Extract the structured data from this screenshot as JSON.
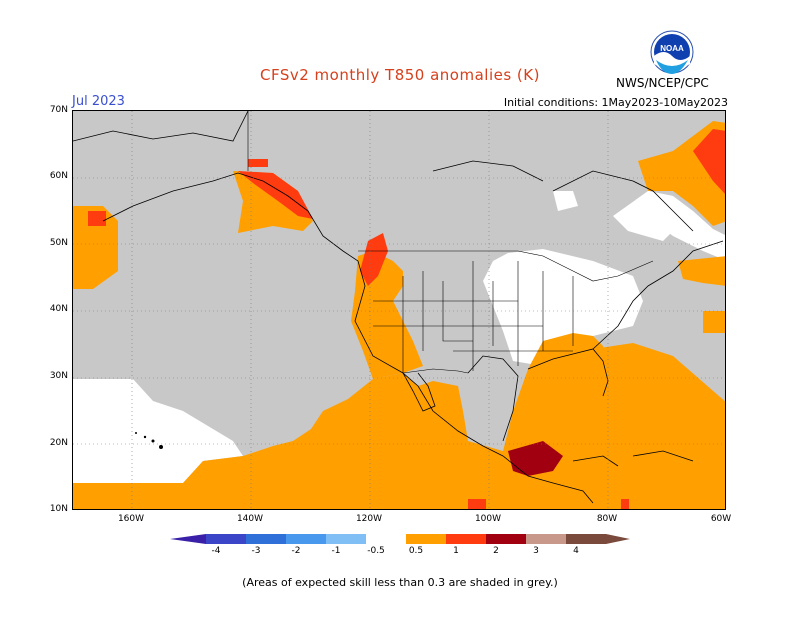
{
  "header": {
    "title": "CFSv2 monthly T850 anomalies (K)",
    "month": "Jul 2023",
    "initial_conditions": "Initial conditions: 1May2023-10May2023",
    "agency": "NWS/NCEP/CPC",
    "logo_text": "NOAA"
  },
  "map": {
    "lat_labels": [
      "70N",
      "60N",
      "50N",
      "40N",
      "30N",
      "20N",
      "10N"
    ],
    "lon_labels": [
      "160W",
      "140W",
      "120W",
      "100W",
      "80W",
      "60W"
    ],
    "region": "North America and adjacent oceans",
    "lat_range": [
      10,
      70
    ],
    "lon_range": [
      -170,
      -60
    ]
  },
  "colorbar": {
    "labels": [
      "-4",
      "-3",
      "-2",
      "-1",
      "-0.5",
      "0.5",
      "1",
      "2",
      "3",
      "4"
    ],
    "colors": [
      "#3a1fa8",
      "#3b45c8",
      "#2e6fd8",
      "#4898ee",
      "#80bff5",
      "#ffffff",
      "#ff9f00",
      "#ff3b10",
      "#a00010",
      "#c8988a",
      "#7a4a3c"
    ]
  },
  "legend_colors": {
    "grey": "#c8c8c8",
    "orange": "#ff9f00",
    "red_orange": "#ff3b10",
    "white": "#ffffff"
  },
  "footnote": "(Areas of expected skill less than 0.3 are shaded in grey.)"
}
